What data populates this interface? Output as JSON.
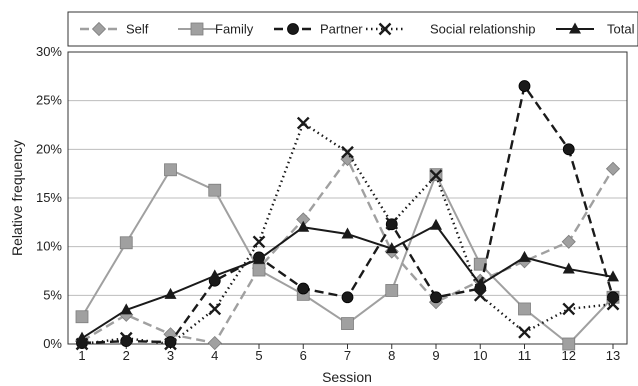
{
  "chart_data": {
    "type": "line",
    "xlabel": "Session",
    "ylabel": "Relative frequency",
    "x": [
      1,
      2,
      3,
      4,
      5,
      6,
      7,
      8,
      9,
      10,
      11,
      12,
      13
    ],
    "ylim": [
      0,
      30
    ],
    "yticks": [
      "0%",
      "5%",
      "10%",
      "15%",
      "20%",
      "25%",
      "30%"
    ],
    "grid": "horizontal",
    "legend_position": "top",
    "series": [
      {
        "name": "Self",
        "style": "dashed",
        "marker": "diamond",
        "color": "#a0a0a0",
        "values": [
          0.3,
          3.0,
          1.0,
          0.1,
          7.8,
          12.8,
          19.0,
          9.5,
          4.3,
          6.5,
          8.5,
          10.5,
          18.0
        ]
      },
      {
        "name": "Family",
        "style": "solid",
        "marker": "square",
        "color": "#a0a0a0",
        "values": [
          2.8,
          10.4,
          17.9,
          15.8,
          7.6,
          5.1,
          2.1,
          5.5,
          17.4,
          8.2,
          3.6,
          0.0,
          4.8
        ]
      },
      {
        "name": "Partner",
        "style": "dashed",
        "marker": "circle",
        "color": "#1a1a1a",
        "values": [
          0.1,
          0.3,
          0.2,
          6.5,
          8.9,
          5.7,
          4.8,
          12.3,
          4.8,
          5.7,
          26.5,
          20.0,
          4.8
        ]
      },
      {
        "name": "Social relationship",
        "style": "dotted",
        "marker": "x",
        "color": "#1a1a1a",
        "values": [
          0.0,
          0.6,
          0.0,
          3.6,
          10.5,
          22.7,
          19.7,
          12.4,
          17.3,
          5.0,
          1.2,
          3.6,
          4.1
        ]
      },
      {
        "name": "Total",
        "style": "solid",
        "marker": "triangle",
        "color": "#1a1a1a",
        "values": [
          0.6,
          3.5,
          5.1,
          7.0,
          8.7,
          12.0,
          11.3,
          9.8,
          12.2,
          6.1,
          8.9,
          7.7,
          6.9
        ]
      }
    ]
  }
}
